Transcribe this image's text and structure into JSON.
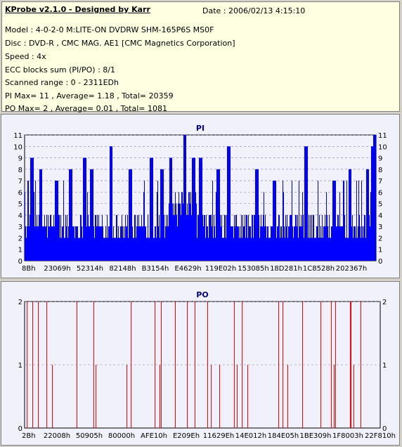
{
  "header": {
    "title": "KProbe v2.1.0 - Designed by Karr",
    "date": "Date : 2006/02/13 4:15:10",
    "lines": [
      "Model : 4-0-2-0 M:LITE-ON DVDRW SHM-165P6S MS0F",
      "Disc : DVD-R , CMC MAG. AE1 [CMC Magnetics Corporation]",
      "Speed : 4x",
      "ECC blocks sum (PI/PO) : 8/1",
      "Scanned range : 0 - 2311EDh",
      "PI Max= 11 , Average= 1.18 , Total= 20359",
      "PO Max= 2 , Average= 0.01 , Total= 1081"
    ]
  },
  "colors": {
    "pi": "#0000ff",
    "po": "#ff0000",
    "plot_bg": "#f1f1fb",
    "title": "#000080"
  },
  "chart_data": [
    {
      "type": "bar",
      "title": "PI",
      "series": [
        {
          "name": "PI",
          "color": "#0000ff"
        }
      ],
      "ylim": [
        0,
        11
      ],
      "yticks": [
        0,
        1,
        2,
        3,
        4,
        5,
        6,
        7,
        8,
        9,
        10,
        11
      ],
      "xticks": [
        "8Bh",
        "23069h",
        "52314h",
        "82148h",
        "B3154h",
        "E4629h",
        "119E02h",
        "153085h",
        "18D281h",
        "1C8528h",
        "202367h"
      ],
      "grid": true,
      "bursts": [
        {
          "at": 0.02,
          "value": 9
        },
        {
          "at": 0.045,
          "value": 8
        },
        {
          "at": 0.09,
          "value": 7
        },
        {
          "at": 0.13,
          "value": 8
        },
        {
          "at": 0.17,
          "value": 9
        },
        {
          "at": 0.19,
          "value": 8
        },
        {
          "at": 0.245,
          "value": 10
        },
        {
          "at": 0.3,
          "value": 8
        },
        {
          "at": 0.36,
          "value": 9
        },
        {
          "at": 0.39,
          "value": 8
        },
        {
          "at": 0.415,
          "value": 9
        },
        {
          "at": 0.455,
          "value": 11
        },
        {
          "at": 0.48,
          "value": 9
        },
        {
          "at": 0.5,
          "value": 9
        },
        {
          "at": 0.55,
          "value": 8
        },
        {
          "at": 0.58,
          "value": 10
        },
        {
          "at": 0.66,
          "value": 8
        },
        {
          "at": 0.71,
          "value": 7
        },
        {
          "at": 0.8,
          "value": 10
        },
        {
          "at": 0.88,
          "value": 7
        },
        {
          "at": 0.925,
          "value": 8
        },
        {
          "at": 0.975,
          "value": 8
        },
        {
          "at": 0.99,
          "value": 10
        },
        {
          "at": 0.995,
          "value": 11
        }
      ]
    },
    {
      "type": "bar",
      "title": "PO",
      "series": [
        {
          "name": "PO",
          "color": "#ff0000"
        }
      ],
      "ylim": [
        0,
        2
      ],
      "yticks": [
        0,
        1,
        2
      ],
      "xticks": [
        "2Bh",
        "22008h",
        "50905h",
        "80000h",
        "AFE10h",
        "E209Eh",
        "11629Eh",
        "14E012h",
        "184E05h",
        "1BE309h",
        "1F8003h",
        "22F810h"
      ],
      "grid": true
    }
  ]
}
